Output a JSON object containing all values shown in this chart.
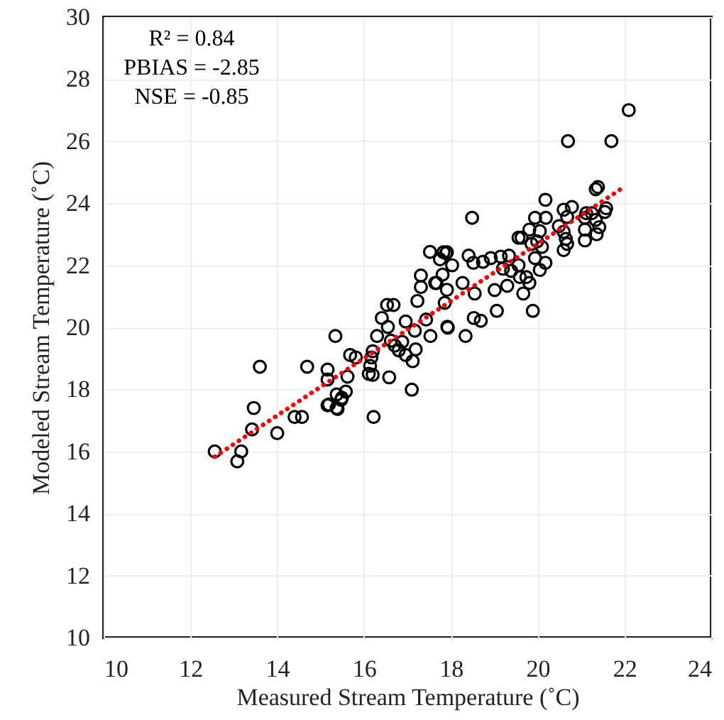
{
  "chart_data": {
    "type": "scatter",
    "xlabel": "Measured Stream Temperature (˚C)",
    "ylabel": "Modeled Stream Temperature (˚C)",
    "annotations": [
      "R² = 0.84",
      "PBIAS = -2.85",
      "NSE = -0.85"
    ],
    "xlim": [
      10,
      24
    ],
    "xticks": [
      10,
      12,
      14,
      16,
      18,
      20,
      22,
      24
    ],
    "ylim": [
      10,
      30
    ],
    "yticks": [
      10,
      12,
      14,
      16,
      18,
      20,
      22,
      24,
      26,
      28,
      30
    ],
    "grid": true,
    "series": [
      {
        "marker": "circle",
        "color": "#000000",
        "x": [
          12.56,
          13.17,
          13.08,
          13.46,
          13.42,
          14.0,
          14.4,
          14.57,
          15.16,
          15.39,
          15.47,
          16.22,
          13.6,
          14.69,
          15.16,
          15.16,
          15.19,
          15.37,
          15.37,
          15.49,
          15.58,
          15.62,
          15.34,
          15.68,
          15.81,
          16.11,
          16.2,
          16.14,
          16.17,
          16.2,
          16.3,
          16.41,
          16.55,
          16.58,
          16.53,
          16.68,
          16.62,
          16.71,
          16.88,
          16.8,
          16.96,
          17.12,
          17.1,
          17.19,
          17.17,
          16.96,
          17.23,
          17.31,
          17.31,
          17.53,
          17.64,
          17.52,
          17.81,
          17.75,
          17.89,
          17.86,
          17.92,
          17.43,
          17.93,
          18.34,
          18.53,
          18.69,
          19.06,
          19.01,
          19.3,
          19.67,
          19.89,
          18.49,
          17.83,
          17.91,
          18.03,
          17.67,
          17.91,
          18.27,
          18.55,
          18.41,
          18.52,
          18.74,
          18.92,
          19.15,
          19.34,
          19.2,
          19.39,
          19.59,
          19.74,
          19.81,
          19.56,
          19.56,
          19.63,
          19.81,
          19.94,
          20.19,
          20.18,
          20.05,
          19.99,
          19.86,
          20.1,
          19.94,
          20.18,
          20.05,
          20.6,
          20.79,
          20.68,
          20.49,
          20.6,
          20.65,
          20.68,
          20.6,
          21.09,
          21.25,
          21.34,
          21.42,
          21.09,
          21.09,
          21.36,
          21.55,
          21.58,
          21.34,
          21.39,
          21.12,
          20.7,
          21.7,
          22.1
        ],
        "values": [
          16.0,
          16.0,
          15.68,
          17.4,
          16.71,
          16.59,
          17.11,
          17.11,
          17.49,
          17.37,
          17.66,
          17.11,
          18.73,
          18.73,
          18.64,
          18.32,
          17.51,
          17.4,
          17.84,
          17.73,
          17.93,
          18.41,
          19.72,
          19.11,
          19.03,
          18.5,
          18.47,
          18.76,
          19.03,
          19.23,
          19.72,
          20.3,
          20.01,
          18.39,
          20.72,
          20.72,
          19.57,
          19.41,
          19.53,
          19.26,
          19.11,
          18.91,
          17.99,
          19.29,
          19.89,
          20.19,
          20.85,
          21.3,
          21.67,
          19.72,
          21.43,
          22.43,
          21.7,
          22.19,
          22.39,
          20.79,
          20.02,
          20.25,
          19.99,
          19.72,
          20.3,
          20.21,
          20.53,
          21.2,
          21.34,
          21.09,
          20.53,
          23.53,
          22.42,
          22.42,
          22.0,
          21.43,
          21.21,
          21.43,
          21.09,
          22.31,
          22.08,
          22.11,
          22.23,
          22.28,
          22.31,
          21.89,
          21.82,
          21.62,
          21.62,
          21.43,
          22.0,
          22.89,
          22.89,
          23.15,
          23.53,
          23.53,
          24.11,
          23.1,
          22.77,
          22.69,
          22.59,
          22.23,
          22.08,
          21.85,
          23.79,
          23.88,
          23.56,
          23.26,
          23.08,
          22.85,
          22.69,
          22.49,
          23.53,
          23.68,
          23.46,
          23.23,
          23.15,
          22.8,
          23.0,
          23.72,
          23.84,
          24.45,
          24.52,
          23.68,
          26.0,
          26.0,
          27.0
        ]
      },
      {
        "type": "line",
        "line_style": "dotted",
        "color": "#ff0000",
        "x": [
          12.56,
          22.02
        ],
        "values": [
          15.83,
          24.55
        ]
      }
    ]
  }
}
